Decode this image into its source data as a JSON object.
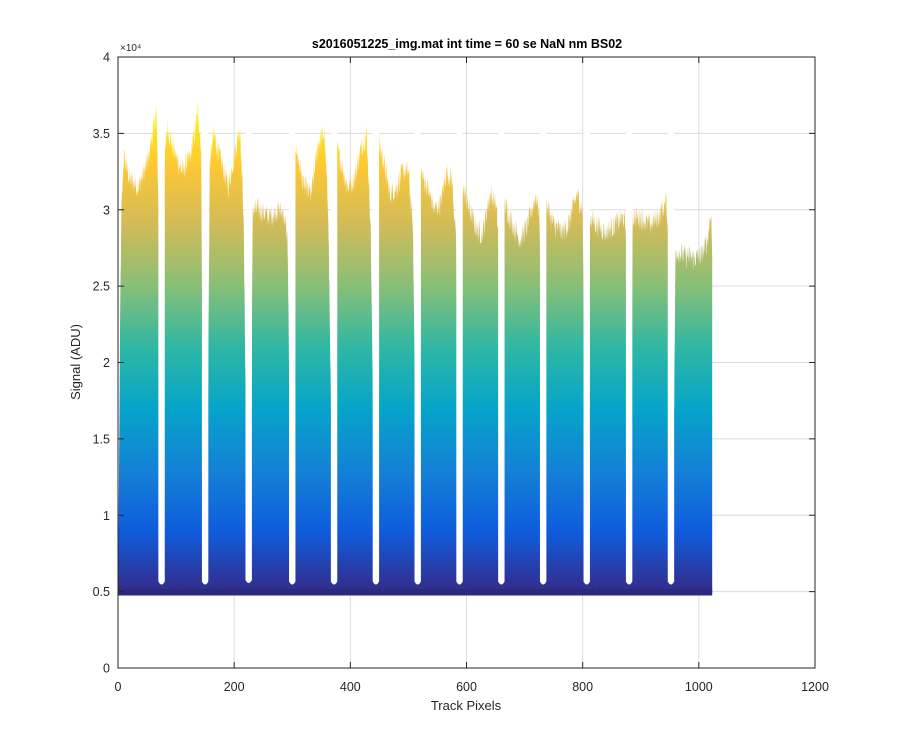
{
  "chart_data": {
    "type": "area",
    "title": "s2016051225_img.mat int time = 60 se  NaN nm BS02",
    "xlabel": "Track Pixels",
    "ylabel": "Signal (ADU)",
    "xlim": [
      0,
      1200
    ],
    "ylim": [
      0,
      40000
    ],
    "x_ticks": [
      0,
      200,
      400,
      600,
      800,
      1000,
      1200
    ],
    "x_tick_labels": [
      "0",
      "200",
      "400",
      "600",
      "800",
      "1000",
      "1200"
    ],
    "y_ticks": [
      0,
      5000,
      10000,
      15000,
      20000,
      25000,
      30000,
      35000,
      40000
    ],
    "y_tick_labels": [
      "0",
      "0.5",
      "1",
      "1.5",
      "2",
      "2.5",
      "3",
      "3.5",
      "4"
    ],
    "y_exponent": "×10⁴",
    "grid": true,
    "colormap": [
      "#352a87",
      "#0f5cdd",
      "#1481d6",
      "#06a4ca",
      "#2eb7a4",
      "#87bf77",
      "#d1bb59",
      "#fec832",
      "#f9fb0e"
    ],
    "baseline": 4900,
    "x_end": 1023,
    "gaps": [
      {
        "x": 75,
        "min": 5400
      },
      {
        "x": 150,
        "min": 5400
      },
      {
        "x": 225,
        "min": 5500
      },
      {
        "x": 300,
        "min": 5400
      },
      {
        "x": 372,
        "min": 5400
      },
      {
        "x": 444,
        "min": 5400
      },
      {
        "x": 516,
        "min": 5400
      },
      {
        "x": 588,
        "min": 5400
      },
      {
        "x": 660,
        "min": 5400
      },
      {
        "x": 732,
        "min": 5400
      },
      {
        "x": 807,
        "min": 5400
      },
      {
        "x": 880,
        "min": 5400
      },
      {
        "x": 952,
        "min": 5400
      }
    ],
    "envelope": [
      [
        0,
        4900
      ],
      [
        2,
        14000
      ],
      [
        4,
        24000
      ],
      [
        6,
        30000
      ],
      [
        10,
        33500
      ],
      [
        20,
        32000
      ],
      [
        35,
        31500
      ],
      [
        50,
        33000
      ],
      [
        62,
        35500
      ],
      [
        66,
        36500
      ],
      [
        70,
        30000
      ],
      [
        73,
        8000
      ],
      [
        78,
        8000
      ],
      [
        80,
        33000
      ],
      [
        85,
        35500
      ],
      [
        95,
        34000
      ],
      [
        110,
        32500
      ],
      [
        125,
        33500
      ],
      [
        138,
        36500
      ],
      [
        143,
        34000
      ],
      [
        148,
        8000
      ],
      [
        153,
        8000
      ],
      [
        158,
        33000
      ],
      [
        165,
        35000
      ],
      [
        175,
        33500
      ],
      [
        190,
        31500
      ],
      [
        205,
        34500
      ],
      [
        210,
        35500
      ],
      [
        216,
        30000
      ],
      [
        223,
        8000
      ],
      [
        228,
        8000
      ],
      [
        232,
        30000
      ],
      [
        245,
        30000
      ],
      [
        260,
        29500
      ],
      [
        275,
        30000
      ],
      [
        285,
        29800
      ],
      [
        292,
        28000
      ],
      [
        298,
        8000
      ],
      [
        302,
        8000
      ],
      [
        305,
        34500
      ],
      [
        312,
        33000
      ],
      [
        320,
        31500
      ],
      [
        333,
        31000
      ],
      [
        345,
        34500
      ],
      [
        355,
        35000
      ],
      [
        362,
        30000
      ],
      [
        370,
        8000
      ],
      [
        374,
        8000
      ],
      [
        377,
        34000
      ],
      [
        385,
        33000
      ],
      [
        395,
        31500
      ],
      [
        407,
        32000
      ],
      [
        418,
        34000
      ],
      [
        428,
        35000
      ],
      [
        435,
        29000
      ],
      [
        442,
        8000
      ],
      [
        446,
        8000
      ],
      [
        449,
        34500
      ],
      [
        458,
        33000
      ],
      [
        468,
        31000
      ],
      [
        480,
        31500
      ],
      [
        490,
        32500
      ],
      [
        500,
        32500
      ],
      [
        508,
        28500
      ],
      [
        514,
        8000
      ],
      [
        518,
        8000
      ],
      [
        521,
        32500
      ],
      [
        532,
        31500
      ],
      [
        545,
        30000
      ],
      [
        556,
        30500
      ],
      [
        565,
        32500
      ],
      [
        575,
        32000
      ],
      [
        582,
        28000
      ],
      [
        586,
        8000
      ],
      [
        590,
        8000
      ],
      [
        593,
        31500
      ],
      [
        605,
        30000
      ],
      [
        620,
        28500
      ],
      [
        628,
        28500
      ],
      [
        640,
        31000
      ],
      [
        650,
        30500
      ],
      [
        656,
        28000
      ],
      [
        658,
        8000
      ],
      [
        662,
        8000
      ],
      [
        665,
        30500
      ],
      [
        680,
        29000
      ],
      [
        693,
        28000
      ],
      [
        705,
        29000
      ],
      [
        720,
        31000
      ],
      [
        726,
        29500
      ],
      [
        730,
        8000
      ],
      [
        734,
        8000
      ],
      [
        737,
        30500
      ],
      [
        750,
        29000
      ],
      [
        765,
        28500
      ],
      [
        775,
        29000
      ],
      [
        790,
        31000
      ],
      [
        800,
        30000
      ],
      [
        805,
        8000
      ],
      [
        809,
        8000
      ],
      [
        812,
        29500
      ],
      [
        825,
        29000
      ],
      [
        840,
        28500
      ],
      [
        855,
        29000
      ],
      [
        870,
        29500
      ],
      [
        876,
        28500
      ],
      [
        878,
        8000
      ],
      [
        882,
        8000
      ],
      [
        886,
        29500
      ],
      [
        900,
        29500
      ],
      [
        915,
        29000
      ],
      [
        930,
        29500
      ],
      [
        944,
        30500
      ],
      [
        948,
        28000
      ],
      [
        950,
        8000
      ],
      [
        955,
        8000
      ],
      [
        960,
        27300
      ],
      [
        975,
        27000
      ],
      [
        990,
        26800
      ],
      [
        1005,
        27000
      ],
      [
        1015,
        28000
      ],
      [
        1021,
        30000
      ],
      [
        1023,
        27000
      ]
    ]
  }
}
